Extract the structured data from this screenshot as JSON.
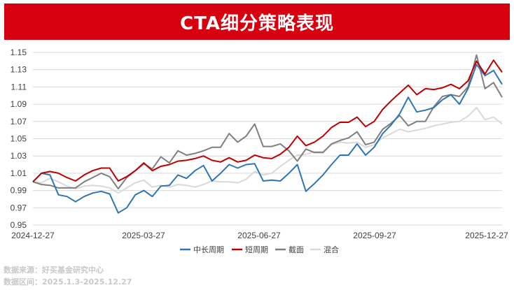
{
  "header": {
    "title": "CTA细分策略表现"
  },
  "chart_data": {
    "type": "line",
    "x_ticks": [
      "2024-12-27",
      "2025-03-27",
      "2025-06-27",
      "2025-09-27",
      "2025-12-27"
    ],
    "y_ticks": [
      0.95,
      0.97,
      0.99,
      1.01,
      1.03,
      1.05,
      1.07,
      1.09,
      1.11,
      1.13,
      1.15
    ],
    "ylim": [
      0.95,
      1.15
    ],
    "y_tick_labels": [
      "0.95",
      "0.97",
      "0.99",
      "1.01",
      "1.03",
      "1.05",
      "1.07",
      "1.09",
      "1.11",
      "1.13",
      "1.15"
    ],
    "grid": true,
    "legend_position": "bottom",
    "series": [
      {
        "name": "中长周期",
        "color": "#2e75b6",
        "values": [
          1.0,
          1.01,
          1.008,
          0.985,
          0.983,
          0.977,
          0.983,
          0.987,
          0.989,
          0.986,
          0.964,
          0.97,
          0.985,
          0.99,
          0.983,
          0.995,
          0.996,
          1.008,
          1.004,
          1.013,
          1.019,
          1.001,
          1.01,
          1.02,
          1.016,
          1.02,
          1.021,
          1.001,
          1.002,
          1.001,
          1.01,
          1.02,
          0.989,
          0.998,
          1.008,
          1.02,
          1.031,
          1.031,
          1.044,
          1.031,
          1.04,
          1.056,
          1.066,
          1.079,
          1.098,
          1.081,
          1.083,
          1.086,
          1.095,
          1.101,
          1.09,
          1.108,
          1.136,
          1.123,
          1.129,
          1.113
        ]
      },
      {
        "name": "短周期",
        "color": "#c00000",
        "values": [
          1.0,
          1.01,
          1.012,
          1.01,
          1.005,
          1.001,
          1.008,
          1.013,
          1.016,
          1.016,
          1.001,
          1.006,
          1.013,
          1.022,
          1.013,
          1.018,
          1.02,
          1.024,
          1.025,
          1.027,
          1.03,
          1.025,
          1.023,
          1.028,
          1.023,
          1.025,
          1.031,
          1.028,
          1.027,
          1.032,
          1.04,
          1.053,
          1.042,
          1.046,
          1.053,
          1.063,
          1.069,
          1.069,
          1.075,
          1.064,
          1.07,
          1.084,
          1.094,
          1.103,
          1.112,
          1.101,
          1.108,
          1.107,
          1.109,
          1.113,
          1.108,
          1.117,
          1.14,
          1.125,
          1.141,
          1.127
        ]
      },
      {
        "name": "截面",
        "color": "#7f7f7f",
        "values": [
          1.0,
          0.997,
          0.996,
          0.993,
          0.993,
          0.993,
          1.0,
          1.005,
          1.01,
          1.006,
          0.992,
          1.005,
          1.013,
          1.021,
          1.015,
          1.029,
          1.022,
          1.036,
          1.031,
          1.033,
          1.036,
          1.04,
          1.04,
          1.056,
          1.046,
          1.053,
          1.067,
          1.041,
          1.041,
          1.044,
          1.036,
          1.024,
          1.038,
          1.034,
          1.034,
          1.044,
          1.048,
          1.051,
          1.058,
          1.043,
          1.046,
          1.061,
          1.068,
          1.077,
          1.065,
          1.07,
          1.07,
          1.087,
          1.099,
          1.101,
          1.099,
          1.11,
          1.147,
          1.108,
          1.115,
          1.098
        ]
      },
      {
        "name": "混合",
        "color": "#d9d9d9",
        "values": [
          1.0,
          0.999,
          1.004,
          1.0,
          0.995,
          0.992,
          0.995,
          0.996,
          0.995,
          0.993,
          0.987,
          0.993,
          0.999,
          1.002,
          0.994,
          0.996,
          0.994,
          0.997,
          0.996,
          0.994,
          0.997,
          1.001,
          1.0,
          1.0,
          0.999,
          1.003,
          1.012,
          1.008,
          1.01,
          1.018,
          1.025,
          1.031,
          1.032,
          1.035,
          1.035,
          1.043,
          1.046,
          1.045,
          1.046,
          1.04,
          1.043,
          1.051,
          1.056,
          1.061,
          1.058,
          1.06,
          1.062,
          1.065,
          1.067,
          1.069,
          1.07,
          1.076,
          1.086,
          1.072,
          1.075,
          1.067
        ]
      }
    ]
  },
  "footer": {
    "source": "数据来源：好买基金研究中心",
    "period": "数据区间：2025.1.3-2025.12.27"
  }
}
